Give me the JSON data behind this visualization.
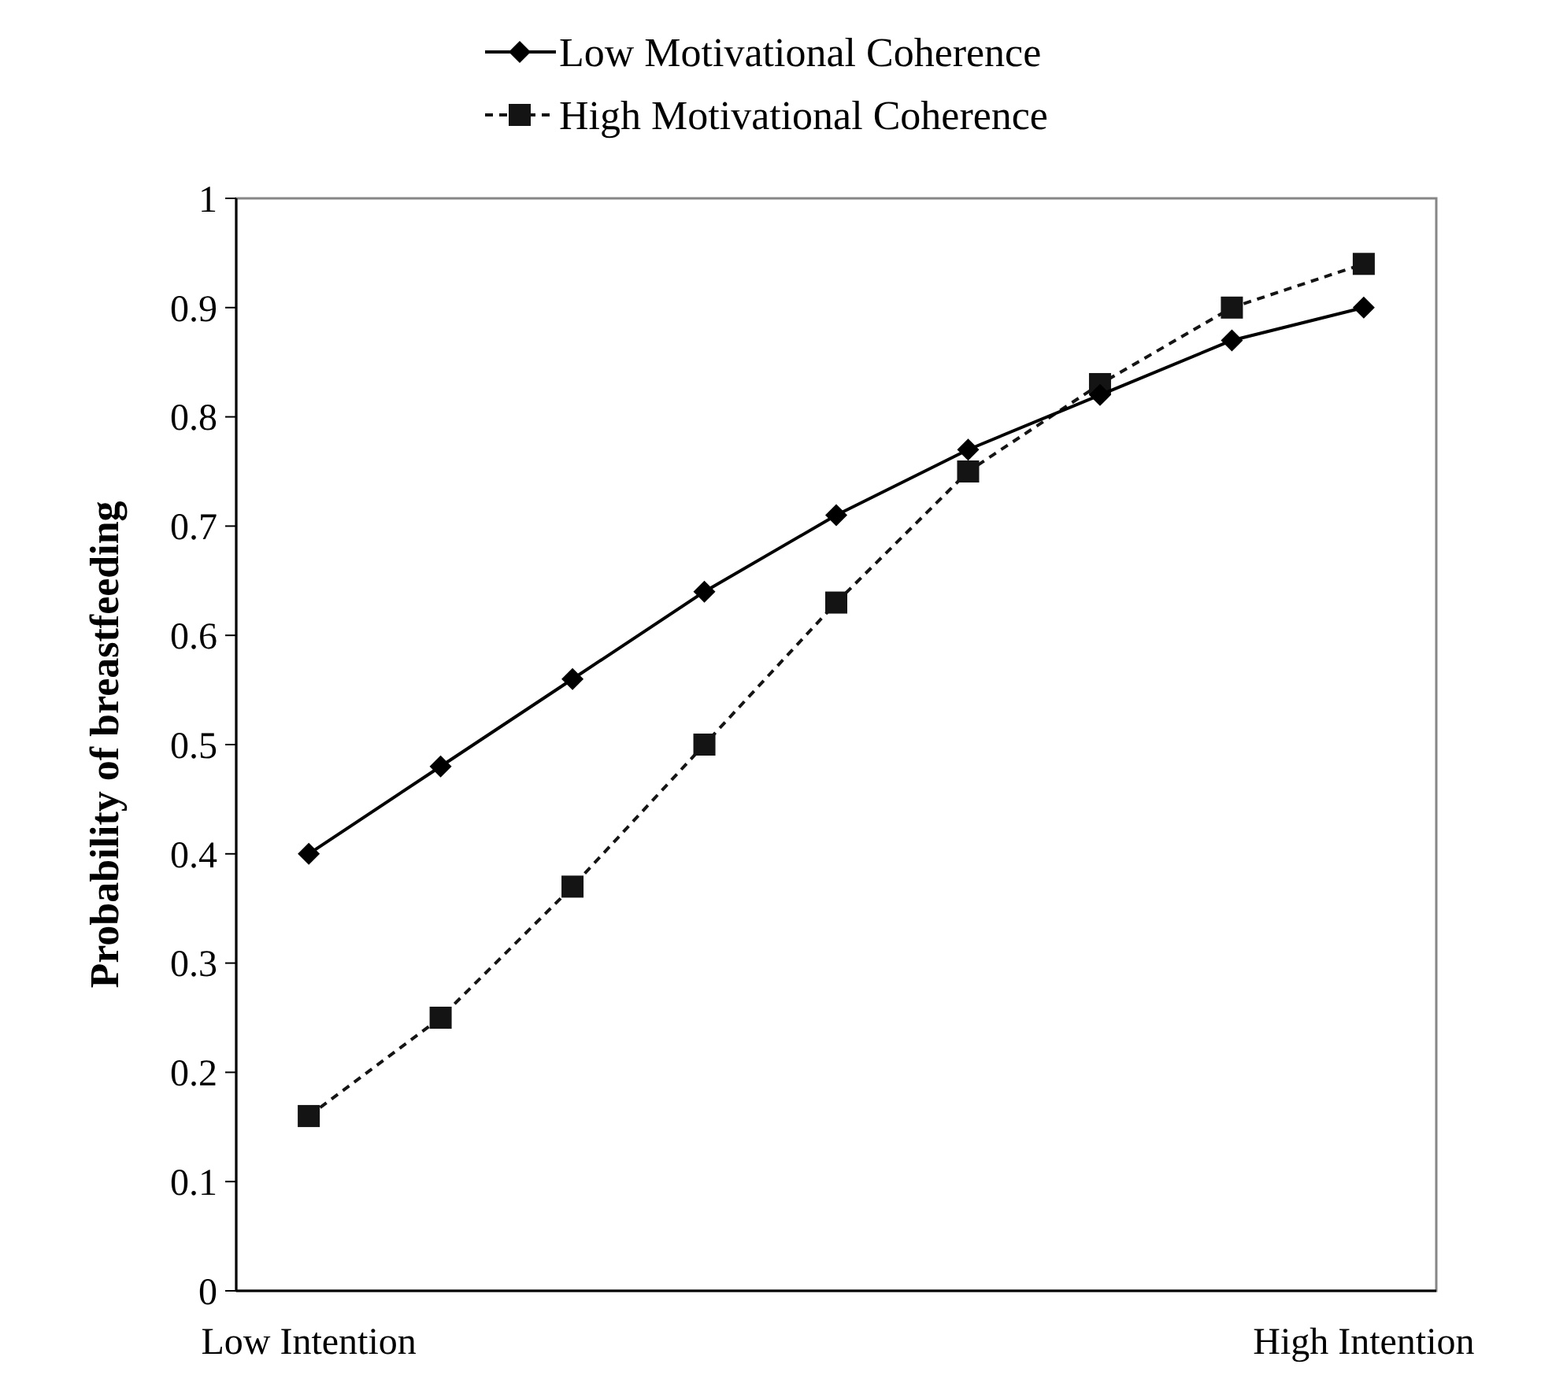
{
  "chart_data": {
    "type": "line",
    "ylabel": "Probability of breastfeeding",
    "categories": [
      "Low Intention",
      null,
      null,
      null,
      null,
      null,
      null,
      null,
      "High Intention"
    ],
    "series": [
      {
        "name": "Low Motivational Coherence",
        "color": "#000000",
        "marker": "diamond",
        "line_style": "solid",
        "values": [
          0.4,
          0.48,
          0.56,
          0.64,
          0.71,
          0.77,
          0.82,
          0.87,
          0.9
        ]
      },
      {
        "name": "High Motivational Coherence",
        "color": "#141414",
        "marker": "square",
        "line_style": "dashed",
        "values": [
          0.16,
          0.25,
          0.37,
          0.5,
          0.63,
          0.75,
          0.83,
          0.9,
          0.94
        ]
      }
    ],
    "ylim": [
      0,
      1
    ],
    "yticks": [
      0,
      0.1,
      0.2,
      0.3,
      0.4,
      0.5,
      0.6,
      0.7,
      0.8,
      0.9,
      1
    ],
    "grid": false,
    "legend": "top"
  }
}
